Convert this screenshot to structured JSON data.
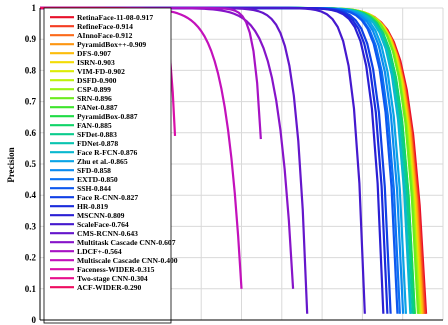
{
  "chart_data": {
    "type": "line",
    "title": "",
    "xlabel": "",
    "ylabel": "Precision",
    "xlim": [
      0,
      1
    ],
    "ylim": [
      0,
      1
    ],
    "y_ticks": [
      "0",
      "0.1",
      "0.2",
      "0.3",
      "0.4",
      "0.5",
      "0.6",
      "0.7",
      "0.8",
      "0.9",
      "1"
    ],
    "grid": true,
    "legend_position": "left",
    "series": [
      {
        "name": "RetinaFace-11-08-0.917",
        "color": "#e8102a",
        "end_x": 0.958,
        "end_y": 0.02,
        "k": 0.038,
        "mid": 0.0
      },
      {
        "name": "RefineFace-0.914",
        "color": "#f43d22",
        "end_x": 0.955,
        "end_y": 0.02,
        "k": 0.038,
        "mid": 0.0
      },
      {
        "name": "AInnoFace-0.912",
        "color": "#fb6a1a",
        "end_x": 0.952,
        "end_y": 0.02,
        "k": 0.037,
        "mid": 0.0
      },
      {
        "name": "PyramidBox++-0.909",
        "color": "#fd9612",
        "end_x": 0.95,
        "end_y": 0.02,
        "k": 0.036,
        "mid": 0.0
      },
      {
        "name": "DFS-0.907",
        "color": "#fcbd0c",
        "end_x": 0.948,
        "end_y": 0.02,
        "k": 0.036,
        "mid": 0.0
      },
      {
        "name": "ISRN-0.903",
        "color": "#f3dc07",
        "end_x": 0.945,
        "end_y": 0.02,
        "k": 0.035,
        "mid": 0.0
      },
      {
        "name": "VIM-FD-0.902",
        "color": "#dcec07",
        "end_x": 0.944,
        "end_y": 0.02,
        "k": 0.035,
        "mid": 0.0
      },
      {
        "name": "DSFD-0.900",
        "color": "#bef30d",
        "end_x": 0.942,
        "end_y": 0.02,
        "k": 0.035,
        "mid": 0.0
      },
      {
        "name": "CSP-0.899",
        "color": "#9af316",
        "end_x": 0.941,
        "end_y": 0.02,
        "k": 0.035,
        "mid": 0.0
      },
      {
        "name": "SRN-0.896",
        "color": "#6cec1f",
        "end_x": 0.938,
        "end_y": 0.02,
        "k": 0.034,
        "mid": 0.0
      },
      {
        "name": "FANet-0.887",
        "color": "#3fe42d",
        "end_x": 0.93,
        "end_y": 0.02,
        "k": 0.034,
        "mid": 0.0
      },
      {
        "name": "PyramidBox-0.887",
        "color": "#1fdc45",
        "end_x": 0.93,
        "end_y": 0.02,
        "k": 0.034,
        "mid": 0.0
      },
      {
        "name": "FAN-0.885",
        "color": "#10d468",
        "end_x": 0.928,
        "end_y": 0.02,
        "k": 0.033,
        "mid": 0.0
      },
      {
        "name": "SFDet-0.883",
        "color": "#0bcc8d",
        "end_x": 0.926,
        "end_y": 0.02,
        "k": 0.033,
        "mid": 0.0
      },
      {
        "name": "FDNet-0.878",
        "color": "#0ac4b0",
        "end_x": 0.921,
        "end_y": 0.02,
        "k": 0.033,
        "mid": 0.0
      },
      {
        "name": "Face R-FCN-0.876",
        "color": "#0ab8cf",
        "end_x": 0.919,
        "end_y": 0.02,
        "k": 0.033,
        "mid": 0.0
      },
      {
        "name": "Zhu et al.-0.865",
        "color": "#0aa4e6",
        "end_x": 0.908,
        "end_y": 0.02,
        "k": 0.032,
        "mid": 0.0
      },
      {
        "name": "SFD-0.858",
        "color": "#0b8cf0",
        "end_x": 0.901,
        "end_y": 0.02,
        "k": 0.032,
        "mid": 0.0
      },
      {
        "name": "EXTD-0.850",
        "color": "#0c72f2",
        "end_x": 0.893,
        "end_y": 0.02,
        "k": 0.032,
        "mid": 0.0
      },
      {
        "name": "SSH-0.844",
        "color": "#0d58ef",
        "end_x": 0.887,
        "end_y": 0.02,
        "k": 0.031,
        "mid": 0.0
      },
      {
        "name": "Face R-CNN-0.827",
        "color": "#1040e6",
        "end_x": 0.87,
        "end_y": 0.02,
        "k": 0.031,
        "mid": 0.0
      },
      {
        "name": "HR-0.819",
        "color": "#1a2bdc",
        "end_x": 0.862,
        "end_y": 0.02,
        "k": 0.031,
        "mid": 0.0
      },
      {
        "name": "MSCNN-0.809",
        "color": "#2a1fd4",
        "end_x": 0.852,
        "end_y": 0.02,
        "k": 0.03,
        "mid": 0.0
      },
      {
        "name": "ScaleFace-0.764",
        "color": "#4519ce",
        "end_x": 0.806,
        "end_y": 0.02,
        "k": 0.03,
        "mid": 0.0
      },
      {
        "name": "CMS-RCNN-0.643",
        "color": "#6516cb",
        "end_x": 0.663,
        "end_y": 0.02,
        "k": 0.04,
        "mid": 0.0
      },
      {
        "name": "Multitask Cascade CNN-0.607",
        "color": "#8714c9",
        "end_x": 0.628,
        "end_y": 0.1,
        "k": 0.06,
        "mid": 0.0
      },
      {
        "name": "LDCF+-0.564",
        "color": "#a712c4",
        "end_x": 0.548,
        "end_y": 0.58,
        "k": 0.03,
        "mid": 0.0
      },
      {
        "name": "Multiscale Cascade CNN-0.400",
        "color": "#c311bb",
        "end_x": 0.5,
        "end_y": 0.1,
        "k": 0.08,
        "mid": 0.0
      },
      {
        "name": "Faceness-WIDER-0.315",
        "color": "#d90fa8",
        "end_x": 0.335,
        "end_y": 0.59,
        "k": 0.04,
        "mid": 0.0
      },
      {
        "name": "Two-stage CNN-0.304",
        "color": "#e70e8c",
        "end_x": 0.303,
        "end_y": 0.34,
        "k": 0.07,
        "mid": 0.0
      },
      {
        "name": "ACF-WIDER-0.290",
        "color": "#ee0d60",
        "end_x": 0.32,
        "end_y": 0.61,
        "k": 0.06,
        "mid": 0.0
      }
    ]
  }
}
